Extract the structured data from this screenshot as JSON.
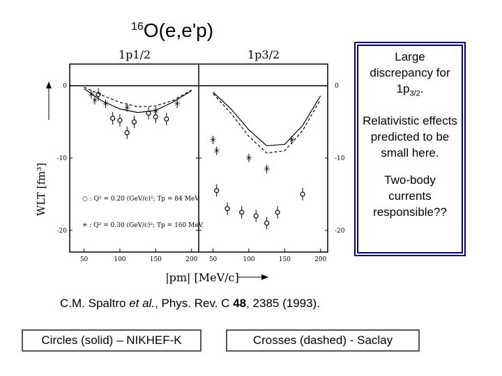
{
  "title": {
    "superscript": "16",
    "main": "O(e,e'p)"
  },
  "figure": {
    "panel_left_label": "1p1/2",
    "panel_right_label": "1p3/2",
    "ylabel": "WLT [fm³]",
    "xlabel": "|pm| [MeV/c]",
    "legend_circle": "○ : Q² = 0.20 (GeV/c)²; Tp = 84 MeV.",
    "legend_cross": "✳ : Q² = 0.30 (GeV/c)²; Tp = 160 MeV."
  },
  "chart_data": [
    {
      "type": "scatter",
      "panel": "1p1/2",
      "xlim": [
        30,
        210
      ],
      "ylim": [
        -23,
        3
      ],
      "x_ticks": [
        50,
        100,
        150,
        200
      ],
      "y_ticks": [
        0,
        -10,
        -20
      ],
      "series": [
        {
          "marker": "circle",
          "x": [
            70,
            90,
            100,
            110,
            120,
            140,
            150,
            165
          ],
          "y": [
            -1.2,
            -4.5,
            -4.8,
            -6.5,
            -5.0,
            -3.8,
            -4.3,
            -4.6
          ]
        },
        {
          "marker": "cross",
          "x": [
            60,
            65,
            80,
            110,
            150,
            180
          ],
          "y": [
            -1.2,
            -2.0,
            -2.5,
            -3.0,
            -3.5,
            -2.5
          ]
        },
        {
          "line": "solid",
          "x": [
            50,
            75,
            100,
            125,
            150,
            175,
            200
          ],
          "y": [
            -0.4,
            -2.1,
            -3.2,
            -3.7,
            -3.4,
            -2.2,
            -0.7
          ]
        },
        {
          "line": "dashed",
          "x": [
            50,
            75,
            100,
            125,
            150,
            175,
            200
          ],
          "y": [
            -0.2,
            -1.3,
            -2.3,
            -2.9,
            -2.8,
            -2.0,
            -0.6
          ]
        }
      ]
    },
    {
      "type": "scatter",
      "panel": "1p3/2",
      "xlim": [
        30,
        210
      ],
      "ylim": [
        -23,
        3
      ],
      "x_ticks": [
        50,
        100,
        150,
        200
      ],
      "y_ticks": [
        0,
        -10,
        -20
      ],
      "series": [
        {
          "marker": "circle",
          "x": [
            55,
            70,
            90,
            110,
            125,
            140,
            175
          ],
          "y": [
            -14.5,
            -17.0,
            -17.5,
            -18.0,
            -19.0,
            -17.5,
            -15.0
          ]
        },
        {
          "marker": "cross",
          "x": [
            50,
            55,
            100,
            125,
            160
          ],
          "y": [
            -7.5,
            -9.0,
            -10.0,
            -11.5,
            -7.5
          ]
        },
        {
          "line": "solid",
          "x": [
            50,
            75,
            100,
            125,
            150,
            175,
            200
          ],
          "y": [
            -0.9,
            -3.2,
            -6.1,
            -8.3,
            -8.1,
            -5.5,
            -1.4
          ]
        },
        {
          "line": "dashed",
          "x": [
            50,
            75,
            100,
            125,
            150,
            175,
            200
          ],
          "y": [
            -1.1,
            -3.8,
            -7.0,
            -9.3,
            -9.0,
            -6.2,
            -1.9
          ]
        }
      ]
    }
  ],
  "notes": {
    "line1a": "Large discrepancy for ",
    "line1b_main": "1p",
    "line1b_sub": "3/2",
    "line1b_end": ".",
    "line2": "Relativistic effects predicted to be small here.",
    "line3": "Two-body currents responsible??"
  },
  "citation": {
    "authors": "C.M. Spaltro ",
    "etal": "et al.",
    "journal": ", Phys. Rev. C ",
    "volume": "48",
    "rest": ", 2385 (1993)."
  },
  "legend": {
    "left": "Circles (solid) – NIKHEF-K",
    "right": "Crosses (dashed) - Saclay"
  }
}
